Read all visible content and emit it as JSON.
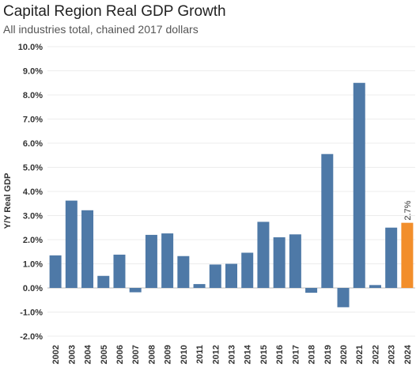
{
  "header": {
    "title": "Capital Region Real GDP Growth",
    "subtitle": "All industries total, chained 2017 dollars"
  },
  "chart_data": {
    "type": "bar",
    "title": "Capital Region Real GDP Growth",
    "subtitle": "All industries total, chained 2017 dollars",
    "xlabel": "",
    "ylabel": "Y/Y Real GDP",
    "ylim": [
      -2.0,
      10.0
    ],
    "y_ticks": [
      -2.0,
      -1.0,
      0.0,
      1.0,
      2.0,
      3.0,
      4.0,
      5.0,
      6.0,
      7.0,
      8.0,
      9.0,
      10.0
    ],
    "y_tick_labels": [
      "-2.0%",
      "-1.0%",
      "0.0%",
      "1.0%",
      "2.0%",
      "3.0%",
      "4.0%",
      "5.0%",
      "6.0%",
      "7.0%",
      "8.0%",
      "9.0%",
      "10.0%"
    ],
    "categories": [
      "2002",
      "2003",
      "2004",
      "2005",
      "2006",
      "2007",
      "2008",
      "2009",
      "2010",
      "2011",
      "2012",
      "2013",
      "2014",
      "2015",
      "2016",
      "2017",
      "2018",
      "2019",
      "2020",
      "2021",
      "2022",
      "2023",
      "2024"
    ],
    "values": [
      1.35,
      3.62,
      3.22,
      0.5,
      1.38,
      -0.18,
      2.2,
      2.26,
      1.32,
      0.16,
      0.97,
      1.0,
      1.46,
      2.74,
      2.1,
      2.22,
      -0.2,
      5.55,
      -0.8,
      8.5,
      0.12,
      2.5,
      2.7
    ],
    "highlight": {
      "category": "2024",
      "label": "2.7%",
      "color": "#f28e2b"
    },
    "bar_color": "#4e79a7",
    "gridlines": true,
    "legend": "none"
  }
}
